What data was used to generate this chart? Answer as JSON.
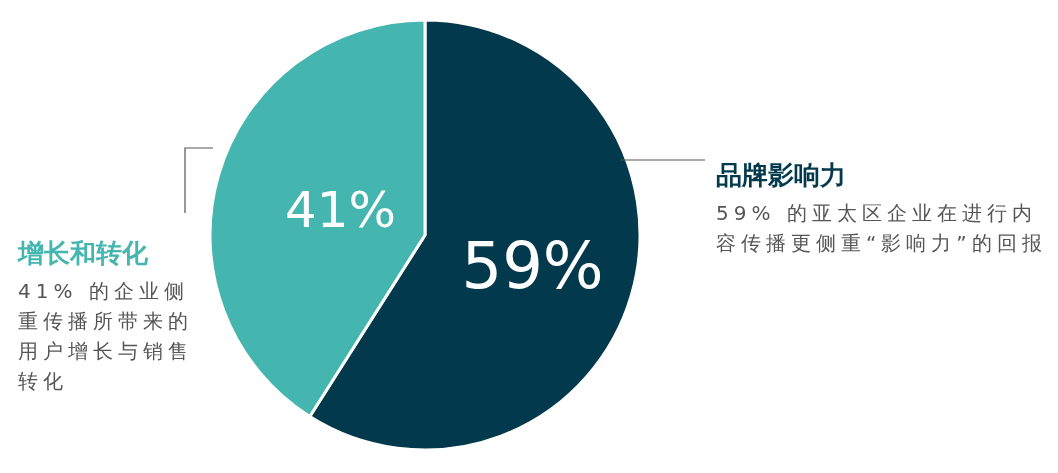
{
  "chart_data": {
    "type": "pie",
    "categories": [
      "品牌影响力",
      "增长和转化"
    ],
    "values": [
      59,
      41
    ],
    "colors": [
      "#02394d",
      "#45b5b0"
    ],
    "value_labels": [
      "59%",
      "41%"
    ],
    "annotations": [
      "59% 的亚太区企业在进行内容传播更侧重“影响力”的回报",
      "41% 的企业侧重传播所带来的用户增长与销售转化"
    ]
  }
}
